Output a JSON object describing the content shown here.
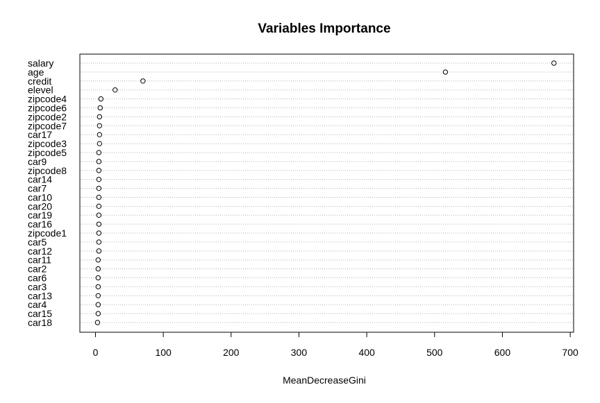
{
  "chart_data": {
    "type": "scatter",
    "subtype": "dotchart",
    "title": "Variables Importance",
    "xlabel": "MeanDecreaseGini",
    "ylabel": "",
    "xlim": [
      -23,
      705
    ],
    "xticks": [
      0,
      100,
      200,
      300,
      400,
      500,
      600,
      700
    ],
    "grid": "dotted horizontal lines per category",
    "categories": [
      "salary",
      "age",
      "credit",
      "elevel",
      "zipcode4",
      "zipcode6",
      "zipcode2",
      "zipcode7",
      "car17",
      "zipcode3",
      "zipcode5",
      "car9",
      "zipcode8",
      "car14",
      "car7",
      "car10",
      "car20",
      "car19",
      "car16",
      "zipcode1",
      "car5",
      "car12",
      "car11",
      "car2",
      "car6",
      "car3",
      "car13",
      "car4",
      "car15",
      "car18"
    ],
    "values": [
      676,
      516,
      70,
      29,
      8,
      7,
      6,
      6,
      6,
      6,
      5,
      5,
      5,
      5,
      5,
      5,
      5,
      5,
      5,
      5,
      5,
      5,
      4,
      4,
      4,
      4,
      4,
      4,
      4,
      3
    ]
  }
}
